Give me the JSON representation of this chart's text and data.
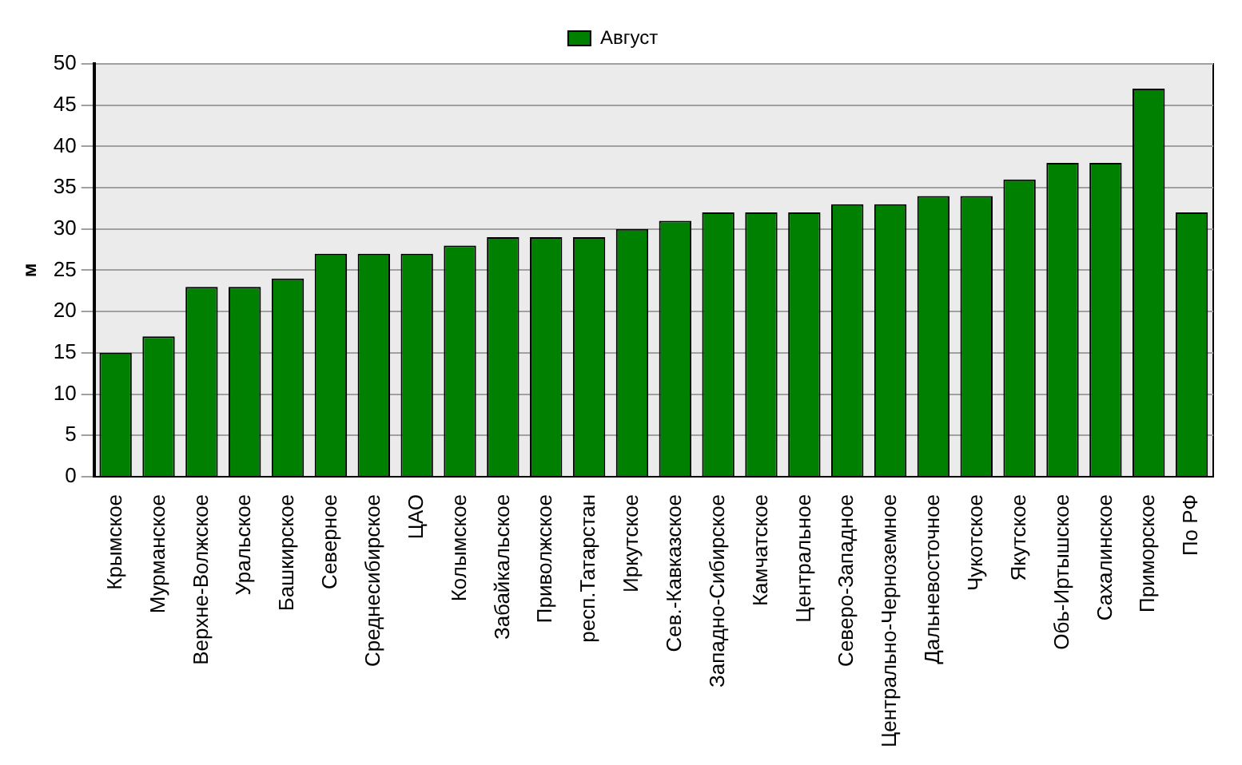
{
  "chart_data": {
    "type": "bar",
    "ylabel": "м",
    "categories": [
      "Крымское",
      "Мурманское",
      "Верхне-Волжское",
      "Уральское",
      "Башкирское",
      "Северное",
      "Среднесибирское",
      "ЦАО",
      "Колымское",
      "Забайкальское",
      "Приволжское",
      "респ.Татарстан",
      "Иркутское",
      "Сев.-Кавказское",
      "Западно-Сибирское",
      "Камчатское",
      "Центральное",
      "Северо-Западное",
      "Центрально-Черноземное",
      "Дальневосточное",
      "Чукотское",
      "Якутское",
      "Обь-Иртышское",
      "Сахалинское",
      "Приморское",
      "По РФ"
    ],
    "series": [
      {
        "name": "Август",
        "color": "#008000",
        "values": [
          15,
          17,
          23,
          23,
          24,
          27,
          27,
          27,
          28,
          29,
          29,
          29,
          30,
          31,
          32,
          32,
          32,
          33,
          33,
          34,
          34,
          36,
          38,
          38,
          47,
          32
        ]
      }
    ],
    "ylim": [
      0,
      50
    ],
    "yticks": [
      0,
      5,
      10,
      15,
      20,
      25,
      30,
      35,
      40,
      45,
      50
    ],
    "grid": "y",
    "legend": "top"
  }
}
